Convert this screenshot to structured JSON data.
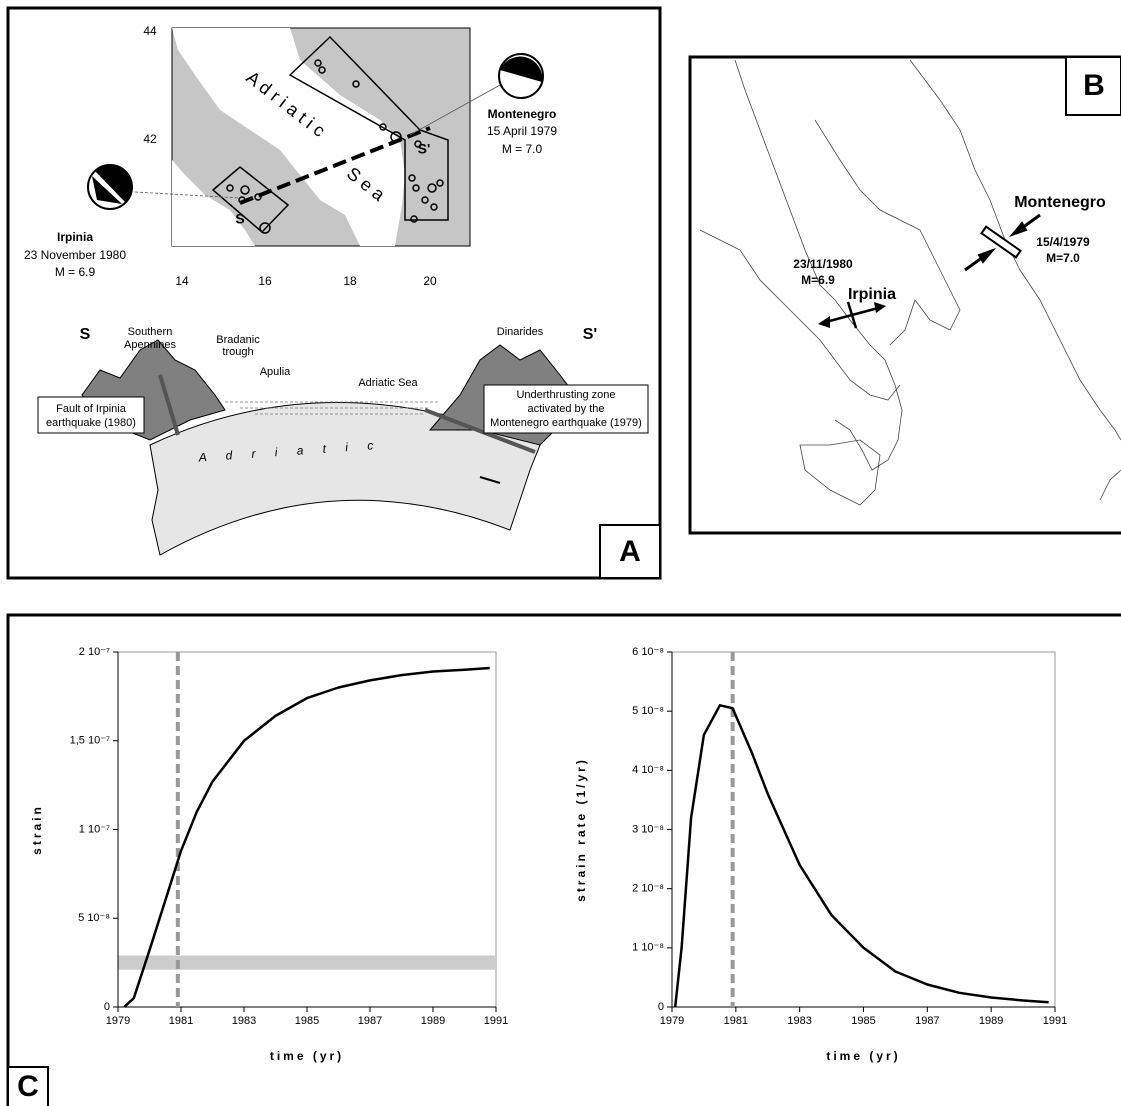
{
  "panels": {
    "a": {
      "label": "A",
      "map": {
        "lat_labels": [
          "44",
          "42"
        ],
        "lon_labels": [
          "14",
          "16",
          "18",
          "20"
        ],
        "sea_word_1": "A d r i a t i c",
        "sea_word_2": "S e a",
        "montenegro": {
          "name": "Montenegro",
          "date": "15 April 1979",
          "magnitude": "M = 7.0"
        },
        "irpinia": {
          "name": "Irpinia",
          "date": "23 November 1980",
          "magnitude": "M = 6.9"
        },
        "section_start": "S",
        "section_end": "S'"
      },
      "section": {
        "start": "S",
        "end": "S'",
        "southern": "Southern",
        "apennines": "Apennines",
        "bradanic": "Bradanic",
        "trough": "trough",
        "apulia": "Apulia",
        "adriatic_sea": "Adriatic Sea",
        "dinarides": "Dinarides",
        "plate": "A d r i a t i c",
        "fault_note": [
          "Fault of Irpinia",
          "earthquake (1980)"
        ],
        "underthrust_note": [
          "Underthrusting zone",
          "activated by the",
          "Montenegro earthquake (1979)"
        ]
      }
    },
    "b": {
      "label": "B",
      "montenegro": "Montenegro",
      "montenegro_date": "15/4/1979",
      "montenegro_magnitude": "M=7.0",
      "irpinia": "Irpinia",
      "irpinia_date": "23/11/1980",
      "irpinia_magnitude": "M=6.9"
    },
    "c": {
      "label": "C"
    }
  },
  "chart_data": [
    {
      "type": "line",
      "xlabel": "time (yr)",
      "ylabel": "strain",
      "color": "#000000",
      "x": [
        1979.2,
        1979.5,
        1980,
        1980.5,
        1981,
        1981.5,
        1982,
        1983,
        1984,
        1985,
        1986,
        1987,
        1988,
        1989,
        1990,
        1990.8
      ],
      "values": [
        0,
        5e-09,
        3.2e-08,
        6e-08,
        8.8e-08,
        1.1e-07,
        1.27e-07,
        1.5e-07,
        1.64e-07,
        1.74e-07,
        1.8e-07,
        1.84e-07,
        1.87e-07,
        1.89e-07,
        1.9e-07,
        1.91e-07
      ],
      "xlim": [
        1979,
        1991
      ],
      "xticks": [
        1979,
        1981,
        1983,
        1985,
        1987,
        1989,
        1991
      ],
      "ylim": [
        0,
        2e-07
      ],
      "yticks": [
        0,
        {
          "value": 5e-08,
          "label": "5 10⁻⁸"
        },
        {
          "value": 1e-07,
          "label": "1 10⁻⁷"
        },
        {
          "value": 1.5e-07,
          "label": "1,5 10⁻⁷"
        },
        {
          "value": 2e-07,
          "label": "2 10⁻⁷"
        }
      ],
      "vline_x": 1980.9,
      "vline_color": "#999999",
      "band": [
        2.1e-08,
        2.9e-08
      ],
      "band_color": "#cccccc"
    },
    {
      "type": "line",
      "xlabel": "time (yr)",
      "ylabel": "strain rate (1/yr)",
      "color": "#000000",
      "x": [
        1979.1,
        1979.3,
        1979.6,
        1980,
        1980.5,
        1980.9,
        1981.5,
        1982,
        1983,
        1984,
        1985,
        1986,
        1987,
        1988,
        1989,
        1990,
        1990.8
      ],
      "values": [
        0,
        1e-08,
        3.2e-08,
        4.6e-08,
        5.1e-08,
        5.05e-08,
        4.3e-08,
        3.6e-08,
        2.4e-08,
        1.55e-08,
        1e-08,
        6e-09,
        3.8e-09,
        2.4e-09,
        1.6e-09,
        1.1e-09,
        8e-10
      ],
      "xlim": [
        1979,
        1991
      ],
      "xticks": [
        1979,
        1981,
        1983,
        1985,
        1987,
        1989,
        1991
      ],
      "ylim": [
        0,
        6e-08
      ],
      "yticks": [
        0,
        {
          "value": 1e-08,
          "label": "1 10⁻⁸"
        },
        {
          "value": 2e-08,
          "label": "2 10⁻⁸"
        },
        {
          "value": 3e-08,
          "label": "3 10⁻⁸"
        },
        {
          "value": 4e-08,
          "label": "4 10⁻⁸"
        },
        {
          "value": 5e-08,
          "label": "5 10⁻⁸"
        },
        {
          "value": 6e-08,
          "label": "6 10⁻⁸"
        }
      ],
      "vline_x": 1980.9,
      "vline_color": "#999999"
    }
  ]
}
